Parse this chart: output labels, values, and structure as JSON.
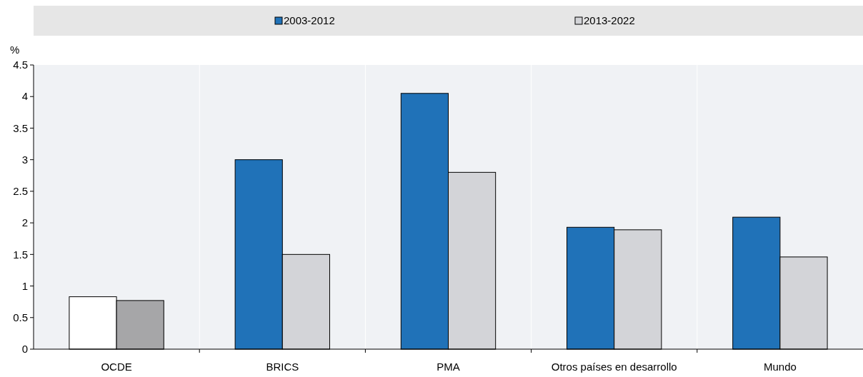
{
  "chart_data": {
    "type": "bar",
    "ylabel": "%",
    "categories": [
      "OCDE",
      "BRICS",
      "PMA",
      "Otros países en desarrollo",
      "Mundo"
    ],
    "series": [
      {
        "name": "2003-2012",
        "color": "#2072b8",
        "colors": [
          "#ffffff",
          "#2072b8",
          "#2072b8",
          "#2072b8",
          "#2072b8"
        ],
        "values": [
          0.83,
          3.0,
          4.05,
          1.93,
          2.09
        ]
      },
      {
        "name": "2013-2022",
        "color": "#d3d4d8",
        "colors": [
          "#a6a6a8",
          "#d3d4d8",
          "#d3d4d8",
          "#d3d4d8",
          "#d3d4d8"
        ],
        "values": [
          0.77,
          1.5,
          2.8,
          1.89,
          1.46
        ]
      }
    ],
    "ylim": [
      0,
      4.5
    ],
    "yticks": [
      0,
      0.5,
      1,
      1.5,
      2,
      2.5,
      3,
      3.5,
      4,
      4.5
    ],
    "legend": "top",
    "grid": false
  }
}
